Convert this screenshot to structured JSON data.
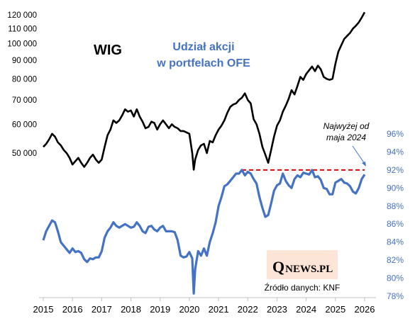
{
  "chart_data": {
    "type": "line",
    "title": "",
    "annotations": {
      "wig_label": "WIG",
      "ofe_label_line1": "Udział akcji",
      "ofe_label_line2": "w portfelach OFE",
      "note_line1": "Najwyżej od",
      "note_line2": "maja 2024",
      "source": "Źródło danych: KNF",
      "logo_q": "Q",
      "logo_rest": "NEWS.PL"
    },
    "x_axis": {
      "ticks": [
        "2015",
        "2016",
        "2017",
        "2018",
        "2019",
        "2020",
        "2021",
        "2022",
        "2023",
        "2024",
        "2025",
        "2026"
      ],
      "range": [
        2015.0,
        2026.0
      ]
    },
    "y_left": {
      "scale": "log",
      "ticks": [
        "50 000",
        "60 000",
        "70 000",
        "80 000",
        "90 000",
        "100 000",
        "110 000",
        "120 000"
      ],
      "tick_values": [
        50000,
        60000,
        70000,
        80000,
        90000,
        100000,
        110000,
        120000
      ]
    },
    "y_right": {
      "ticks": [
        "78%",
        "80%",
        "82%",
        "84%",
        "86%",
        "88%",
        "90%",
        "92%",
        "94%",
        "96%"
      ],
      "tick_values": [
        78,
        80,
        82,
        84,
        86,
        88,
        90,
        92,
        94,
        96
      ],
      "range": [
        78,
        96
      ]
    },
    "reference_line": {
      "value": 92,
      "from_x": 2021.8,
      "to_x": 2026.0,
      "style": "dashed",
      "color": "#E00000"
    },
    "colors": {
      "wig": "#000000",
      "ofe": "#4472C4",
      "reference": "#E00000",
      "logo_box": "#FCE4D6"
    },
    "series": [
      {
        "key": "wig",
        "axis": "left",
        "x": [
          2015.0,
          2015.1,
          2015.2,
          2015.3,
          2015.4,
          2015.5,
          2015.6,
          2015.7,
          2015.8,
          2015.9,
          2016.0,
          2016.1,
          2016.2,
          2016.3,
          2016.4,
          2016.5,
          2016.6,
          2016.7,
          2016.8,
          2016.9,
          2017.0,
          2017.1,
          2017.2,
          2017.3,
          2017.4,
          2017.5,
          2017.6,
          2017.7,
          2017.8,
          2017.9,
          2018.0,
          2018.1,
          2018.2,
          2018.3,
          2018.4,
          2018.5,
          2018.6,
          2018.7,
          2018.8,
          2018.9,
          2019.0,
          2019.1,
          2019.2,
          2019.3,
          2019.4,
          2019.5,
          2019.6,
          2019.7,
          2019.8,
          2019.9,
          2020.0,
          2020.1,
          2020.15,
          2020.2,
          2020.3,
          2020.4,
          2020.5,
          2020.6,
          2020.7,
          2020.8,
          2020.9,
          2021.0,
          2021.1,
          2021.2,
          2021.3,
          2021.4,
          2021.5,
          2021.6,
          2021.7,
          2021.8,
          2021.9,
          2022.0,
          2022.1,
          2022.2,
          2022.3,
          2022.4,
          2022.5,
          2022.6,
          2022.7,
          2022.8,
          2022.9,
          2023.0,
          2023.1,
          2023.2,
          2023.3,
          2023.4,
          2023.5,
          2023.6,
          2023.7,
          2023.8,
          2023.9,
          2024.0,
          2024.1,
          2024.2,
          2024.3,
          2024.4,
          2024.5,
          2024.6,
          2024.7,
          2024.8,
          2024.9,
          2025.0,
          2025.1,
          2025.2,
          2025.3,
          2025.4,
          2025.5,
          2025.6,
          2025.7,
          2025.8,
          2025.9,
          2026.0
        ],
        "values": [
          52000,
          53000,
          54500,
          56500,
          55500,
          53500,
          52500,
          51000,
          50000,
          48500,
          46500,
          47500,
          48500,
          47000,
          45800,
          47000,
          48500,
          49500,
          48000,
          47000,
          48000,
          52000,
          56000,
          58000,
          61500,
          60500,
          61500,
          63500,
          66000,
          65000,
          65500,
          63000,
          66000,
          63000,
          61000,
          58500,
          59000,
          61000,
          60500,
          58000,
          60000,
          61500,
          60000,
          58500,
          60000,
          59000,
          58500,
          57500,
          57500,
          57000,
          56500,
          50000,
          45000,
          48000,
          51000,
          52500,
          53000,
          50000,
          54000,
          53500,
          56000,
          58000,
          59500,
          61500,
          64500,
          67000,
          68000,
          68500,
          70000,
          71000,
          73000,
          70000,
          68500,
          62000,
          60000,
          56500,
          52000,
          49500,
          47000,
          51000,
          55500,
          59500,
          61500,
          65000,
          67500,
          70500,
          74500,
          72500,
          76500,
          81000,
          79500,
          82500,
          84500,
          86500,
          84000,
          87000,
          85000,
          81000,
          80000,
          79500,
          80000,
          88000,
          95000,
          99000,
          103000,
          105000,
          107000,
          110000,
          112000,
          114500,
          118000,
          122000
        ]
      },
      {
        "key": "ofe",
        "axis": "right",
        "x": [
          2015.0,
          2015.1,
          2015.2,
          2015.3,
          2015.4,
          2015.5,
          2015.6,
          2015.7,
          2015.8,
          2015.9,
          2016.0,
          2016.1,
          2016.2,
          2016.3,
          2016.4,
          2016.5,
          2016.6,
          2016.7,
          2016.8,
          2016.9,
          2017.0,
          2017.1,
          2017.2,
          2017.3,
          2017.4,
          2017.5,
          2017.6,
          2017.7,
          2017.8,
          2017.9,
          2018.0,
          2018.1,
          2018.2,
          2018.3,
          2018.4,
          2018.5,
          2018.6,
          2018.7,
          2018.8,
          2018.9,
          2019.0,
          2019.1,
          2019.2,
          2019.3,
          2019.4,
          2019.5,
          2019.6,
          2019.7,
          2019.8,
          2019.9,
          2020.0,
          2020.1,
          2020.15,
          2020.2,
          2020.3,
          2020.4,
          2020.5,
          2020.6,
          2020.7,
          2020.8,
          2020.9,
          2021.0,
          2021.1,
          2021.2,
          2021.3,
          2021.4,
          2021.5,
          2021.6,
          2021.7,
          2021.8,
          2021.9,
          2022.0,
          2022.1,
          2022.2,
          2022.3,
          2022.4,
          2022.5,
          2022.6,
          2022.7,
          2022.8,
          2022.9,
          2023.0,
          2023.1,
          2023.2,
          2023.3,
          2023.4,
          2023.5,
          2023.6,
          2023.7,
          2023.8,
          2023.9,
          2024.0,
          2024.1,
          2024.2,
          2024.3,
          2024.4,
          2024.5,
          2024.6,
          2024.7,
          2024.8,
          2024.9,
          2025.0,
          2025.1,
          2025.2,
          2025.3,
          2025.4,
          2025.5,
          2025.6,
          2025.7,
          2025.8,
          2025.9,
          2026.0
        ],
        "values": [
          84.2,
          85.2,
          85.8,
          86.4,
          86.2,
          85.2,
          84.0,
          83.6,
          83.2,
          82.8,
          83.3,
          82.9,
          83.0,
          82.8,
          82.1,
          81.8,
          82.2,
          82.1,
          82.3,
          82.3,
          83.0,
          84.5,
          85.2,
          85.6,
          86.2,
          85.8,
          85.6,
          85.8,
          86.0,
          85.8,
          85.6,
          85.7,
          86.2,
          85.8,
          85.2,
          85.0,
          85.7,
          85.8,
          85.4,
          85.2,
          85.6,
          85.8,
          85.2,
          85.2,
          85.2,
          85.1,
          84.2,
          82.5,
          82.3,
          82.4,
          82.9,
          82.2,
          78.3,
          81.0,
          83.0,
          82.5,
          83.3,
          82.5,
          84.0,
          85.0,
          86.2,
          88.0,
          89.0,
          90.2,
          90.4,
          90.8,
          91.2,
          91.6,
          91.6,
          92.0,
          91.4,
          91.8,
          91.6,
          91.0,
          90.5,
          89.0,
          87.8,
          86.8,
          87.0,
          88.3,
          89.7,
          90.3,
          90.5,
          91.6,
          90.8,
          90.3,
          90.0,
          91.0,
          91.4,
          91.2,
          91.7,
          91.6,
          91.5,
          92.0,
          91.2,
          91.3,
          90.9,
          90.0,
          89.9,
          89.3,
          89.3,
          90.6,
          90.8,
          91.0,
          90.6,
          90.5,
          90.2,
          89.6,
          89.4,
          90.0,
          91.0,
          91.5
        ]
      }
    ]
  }
}
